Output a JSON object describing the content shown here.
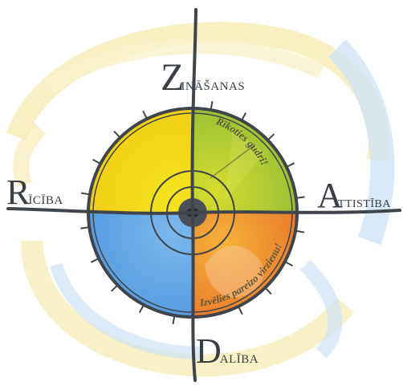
{
  "labels": {
    "top": {
      "initial": "Z",
      "rest": "INĀŠANAS"
    },
    "left": {
      "initial": "R",
      "rest": "ĪCĪBA"
    },
    "right": {
      "initial": "A",
      "rest": "TTISTĪBA"
    },
    "bottom": {
      "initial": "D",
      "rest": "ALĪBA"
    }
  },
  "arc_texts": {
    "upper": "Rīkoties gudri!",
    "lower": "Izvēlies pareizo virzienu!"
  },
  "colors": {
    "quadrant_top_left": "#f2de12",
    "quadrant_top_right": "#a9c636",
    "quadrant_bottom_right": "#ee8a2a",
    "quadrant_bottom_left": "#5fa6e6",
    "axis": "#3f454b",
    "swirl_yellow": "#f6ebb3",
    "swirl_blue": "#cfe3f5"
  }
}
